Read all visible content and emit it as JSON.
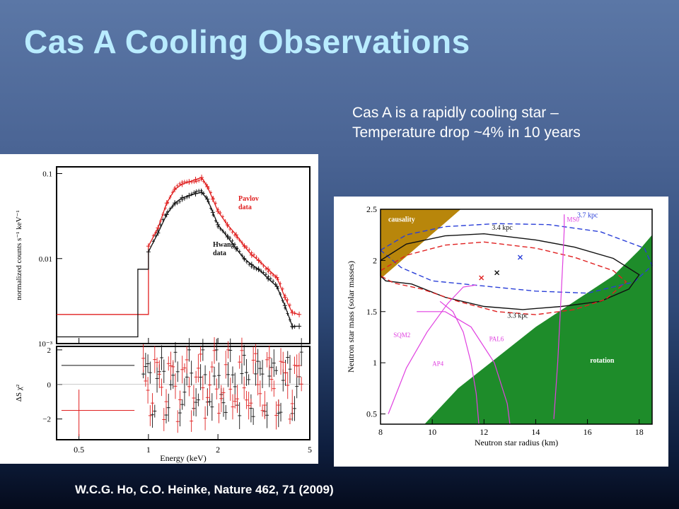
{
  "slide": {
    "title": "Cas A Cooling Observations",
    "note_line1": "Cas A is a rapidly cooling star –",
    "note_line2": "Temperature drop ~4% in 10 years",
    "citation": "W.C.G. Ho, C.O. Heinke, Nature 462, 71 (2009)"
  },
  "chart_data": [
    {
      "type": "line",
      "panel": "x-ray spectrum",
      "xlabel": "Energy (keV)",
      "ylabel": "normalized counts s⁻¹ keV⁻¹",
      "x_scale": "log",
      "y_scale": "log",
      "xlim": [
        0.4,
        5
      ],
      "ylim": [
        0.001,
        0.12
      ],
      "x_ticks": [
        "0.5",
        "1",
        "2",
        "5"
      ],
      "y_ticks": [
        "0.1",
        "0.01",
        "10⁻³"
      ],
      "series": [
        {
          "name": "Pavlov data",
          "color": "#e02020",
          "x": [
            0.4,
            0.9,
            0.9,
            1.0,
            1.0,
            1.1,
            1.2,
            1.3,
            1.4,
            1.5,
            1.6,
            1.7,
            1.8,
            1.9,
            2.0,
            2.2,
            2.4,
            2.6,
            2.8,
            3.0,
            3.3,
            3.6,
            3.9,
            4.2,
            4.5
          ],
          "y": [
            0.0022,
            0.0022,
            0.0022,
            0.0022,
            0.014,
            0.023,
            0.045,
            0.065,
            0.075,
            0.08,
            0.085,
            0.09,
            0.07,
            0.05,
            0.036,
            0.025,
            0.019,
            0.014,
            0.011,
            0.0095,
            0.0075,
            0.006,
            0.0035,
            0.0023,
            0.0022
          ]
        },
        {
          "name": "Hwang data",
          "color": "#111111",
          "x": [
            0.4,
            0.9,
            0.9,
            1.0,
            1.0,
            1.1,
            1.2,
            1.3,
            1.4,
            1.5,
            1.6,
            1.7,
            1.8,
            1.9,
            2.0,
            2.2,
            2.4,
            2.6,
            2.8,
            3.0,
            3.3,
            3.6,
            3.9,
            4.2,
            4.5
          ],
          "y": [
            0.0012,
            0.0012,
            0.0075,
            0.0075,
            0.012,
            0.02,
            0.033,
            0.045,
            0.052,
            0.055,
            0.058,
            0.06,
            0.05,
            0.035,
            0.025,
            0.018,
            0.013,
            0.01,
            0.0085,
            0.0075,
            0.0058,
            0.0047,
            0.0028,
            0.0016,
            0.0016
          ]
        }
      ]
    },
    {
      "type": "scatter",
      "panel": "residuals",
      "xlabel": "Energy (keV)",
      "ylabel": "ΔS χ²",
      "x_scale": "log",
      "xlim": [
        0.4,
        5
      ],
      "ylim": [
        -3.2,
        2.2
      ],
      "x_ticks": [
        "0.5",
        "1",
        "2",
        "5"
      ],
      "y_ticks": [
        "2",
        "0",
        "−2"
      ]
    },
    {
      "type": "area",
      "panel": "mass-radius constraints",
      "xlabel": "Neutron star radius (km)",
      "ylabel": "Neutron star mass (solar masses)",
      "xlim": [
        8,
        18.5
      ],
      "ylim": [
        0.4,
        2.5
      ],
      "x_ticks": [
        "8",
        "10",
        "12",
        "14",
        "16",
        "18"
      ],
      "y_ticks": [
        "0.5",
        "1",
        "1.5",
        "2",
        "2.5"
      ],
      "region_labels": [
        "causality",
        "rotation"
      ],
      "contour_labels": [
        "3.7 kpc",
        "3.4 kpc",
        "3.3 kpc"
      ],
      "eos_labels": [
        "MS0",
        "SQM2",
        "PAL6",
        "AP4"
      ],
      "colors": {
        "causality": "#b8860b",
        "rotation": "#1e8c2a",
        "eos": "#e040e0",
        "kpc_blue": "#2a3fd8",
        "kpc_red": "#e02020"
      },
      "markers": [
        {
          "x": 11.9,
          "y": 1.83,
          "color": "#e02020"
        },
        {
          "x": 12.5,
          "y": 1.88,
          "color": "#111111"
        },
        {
          "x": 13.4,
          "y": 2.03,
          "color": "#2a3fd8"
        }
      ],
      "contours": [
        {
          "label": "3.7 kpc",
          "color": "#2a3fd8",
          "style": "dashed",
          "points": [
            [
              8,
              2.1
            ],
            [
              9,
              2.25
            ],
            [
              10.5,
              2.33
            ],
            [
              12.5,
              2.36
            ],
            [
              14.5,
              2.35
            ],
            [
              16.5,
              2.28
            ],
            [
              18.2,
              2.12
            ],
            [
              18.5,
              1.95
            ],
            [
              17.8,
              1.79
            ],
            [
              16,
              1.68
            ],
            [
              14,
              1.7
            ],
            [
              12,
              1.75
            ],
            [
              10,
              1.8
            ],
            [
              8.8,
              1.93
            ],
            [
              8,
              2.1
            ]
          ]
        },
        {
          "label": "3.4 kpc",
          "color": "#111111",
          "style": "solid",
          "points": [
            [
              8,
              2.0
            ],
            [
              9,
              2.16
            ],
            [
              10.5,
              2.24
            ],
            [
              12,
              2.26
            ],
            [
              14,
              2.2
            ],
            [
              15.5,
              2.13
            ],
            [
              17,
              2.02
            ],
            [
              18,
              1.86
            ],
            [
              17.6,
              1.72
            ],
            [
              16.5,
              1.6
            ],
            [
              15,
              1.55
            ],
            [
              13.5,
              1.52
            ],
            [
              12,
              1.55
            ],
            [
              10.5,
              1.64
            ],
            [
              9.2,
              1.77
            ],
            [
              8.2,
              1.8
            ],
            [
              8,
              1.85
            ],
            [
              8,
              2.0
            ]
          ]
        },
        {
          "label": "3.3 kpc",
          "color": "#e02020",
          "style": "dashed",
          "points": [
            [
              8,
              1.9
            ],
            [
              9,
              2.05
            ],
            [
              10.5,
              2.15
            ],
            [
              12,
              2.18
            ],
            [
              14,
              2.12
            ],
            [
              15.5,
              2.03
            ],
            [
              17,
              1.9
            ],
            [
              17.5,
              1.79
            ],
            [
              16.7,
              1.62
            ],
            [
              15.5,
              1.52
            ],
            [
              14,
              1.47
            ],
            [
              12.5,
              1.5
            ],
            [
              11,
              1.6
            ],
            [
              9.6,
              1.72
            ],
            [
              8.5,
              1.78
            ],
            [
              8,
              1.85
            ]
          ]
        }
      ],
      "eos_curves": [
        {
          "label": "MS0",
          "points": [
            [
              14.7,
              0.45
            ],
            [
              14.85,
              1.0
            ],
            [
              14.95,
              1.5
            ],
            [
              15.05,
              2.0
            ],
            [
              15.1,
              2.3
            ],
            [
              15.1,
              2.45
            ]
          ]
        },
        {
          "label": "SQM2",
          "points": [
            [
              8.3,
              0.5
            ],
            [
              9,
              0.95
            ],
            [
              9.8,
              1.3
            ],
            [
              10.6,
              1.58
            ],
            [
              11.2,
              1.74
            ],
            [
              11.7,
              1.76
            ]
          ]
        },
        {
          "label": "PAL6",
          "points": [
            [
              9.4,
              1.5
            ],
            [
              10.5,
              1.5
            ],
            [
              11.5,
              1.35
            ],
            [
              12.4,
              1.0
            ],
            [
              12.9,
              0.6
            ],
            [
              13.0,
              0.4
            ]
          ]
        },
        {
          "label": "AP4",
          "points": [
            [
              11.8,
              0.4
            ],
            [
              11.7,
              0.7
            ],
            [
              11.5,
              1.0
            ],
            [
              11.2,
              1.3
            ],
            [
              10.8,
              1.5
            ],
            [
              10.3,
              1.6
            ]
          ]
        }
      ],
      "causality_boundary": [
        [
          8,
          1.82
        ],
        [
          11.1,
          2.5
        ]
      ],
      "rotation_boundary": [
        [
          9.7,
          0.4
        ],
        [
          11,
          0.75
        ],
        [
          12.5,
          1.05
        ],
        [
          14,
          1.35
        ],
        [
          15.5,
          1.6
        ],
        [
          17,
          1.85
        ],
        [
          18,
          2.1
        ],
        [
          18.5,
          2.25
        ]
      ]
    }
  ]
}
